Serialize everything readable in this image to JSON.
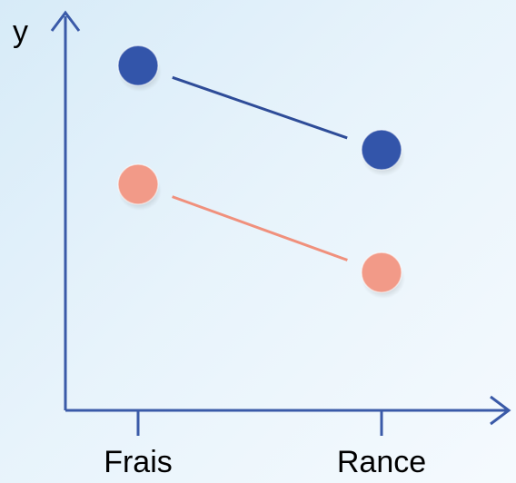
{
  "chart_data": {
    "type": "line",
    "title": "",
    "xlabel": "",
    "ylabel": "y",
    "categories": [
      "Frais",
      "Rance"
    ],
    "ylim": [
      0,
      10
    ],
    "grid": false,
    "legend": "none",
    "series": [
      {
        "values": [
          9,
          6.8
        ],
        "color": "#3355aa",
        "line_color": "#2e4c98"
      },
      {
        "values": [
          5.9,
          3.6
        ],
        "color": "#f29a88",
        "line_color": "#f0907c"
      }
    ]
  }
}
